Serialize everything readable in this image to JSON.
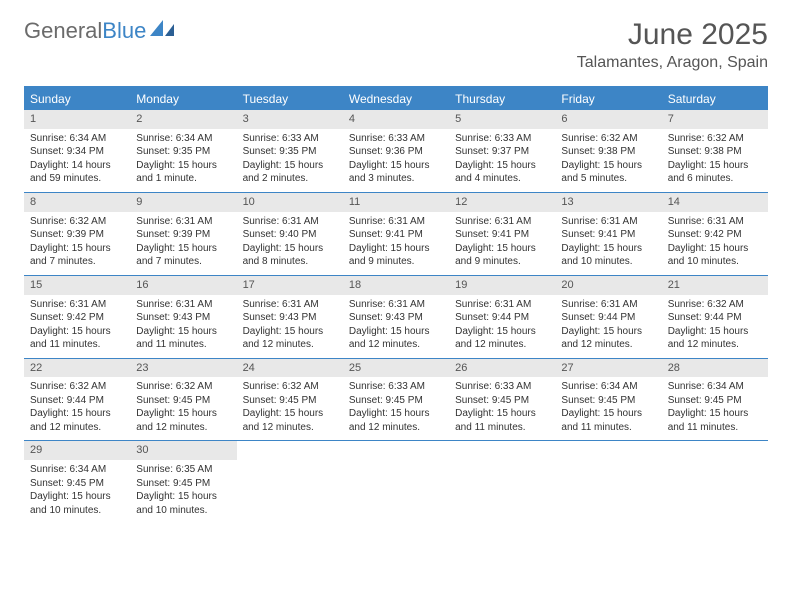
{
  "logo": {
    "text1": "General",
    "text2": "Blue"
  },
  "title": "June 2025",
  "location": "Talamantes, Aragon, Spain",
  "colors": {
    "accent": "#3d85c6",
    "header_text": "#ffffff",
    "daynum_bg": "#e8e8e8",
    "body_text": "#333333",
    "title_text": "#555555"
  },
  "day_names": [
    "Sunday",
    "Monday",
    "Tuesday",
    "Wednesday",
    "Thursday",
    "Friday",
    "Saturday"
  ],
  "weeks": [
    [
      {
        "n": "1",
        "sr": "Sunrise: 6:34 AM",
        "ss": "Sunset: 9:34 PM",
        "dl": "Daylight: 14 hours and 59 minutes."
      },
      {
        "n": "2",
        "sr": "Sunrise: 6:34 AM",
        "ss": "Sunset: 9:35 PM",
        "dl": "Daylight: 15 hours and 1 minute."
      },
      {
        "n": "3",
        "sr": "Sunrise: 6:33 AM",
        "ss": "Sunset: 9:35 PM",
        "dl": "Daylight: 15 hours and 2 minutes."
      },
      {
        "n": "4",
        "sr": "Sunrise: 6:33 AM",
        "ss": "Sunset: 9:36 PM",
        "dl": "Daylight: 15 hours and 3 minutes."
      },
      {
        "n": "5",
        "sr": "Sunrise: 6:33 AM",
        "ss": "Sunset: 9:37 PM",
        "dl": "Daylight: 15 hours and 4 minutes."
      },
      {
        "n": "6",
        "sr": "Sunrise: 6:32 AM",
        "ss": "Sunset: 9:38 PM",
        "dl": "Daylight: 15 hours and 5 minutes."
      },
      {
        "n": "7",
        "sr": "Sunrise: 6:32 AM",
        "ss": "Sunset: 9:38 PM",
        "dl": "Daylight: 15 hours and 6 minutes."
      }
    ],
    [
      {
        "n": "8",
        "sr": "Sunrise: 6:32 AM",
        "ss": "Sunset: 9:39 PM",
        "dl": "Daylight: 15 hours and 7 minutes."
      },
      {
        "n": "9",
        "sr": "Sunrise: 6:31 AM",
        "ss": "Sunset: 9:39 PM",
        "dl": "Daylight: 15 hours and 7 minutes."
      },
      {
        "n": "10",
        "sr": "Sunrise: 6:31 AM",
        "ss": "Sunset: 9:40 PM",
        "dl": "Daylight: 15 hours and 8 minutes."
      },
      {
        "n": "11",
        "sr": "Sunrise: 6:31 AM",
        "ss": "Sunset: 9:41 PM",
        "dl": "Daylight: 15 hours and 9 minutes."
      },
      {
        "n": "12",
        "sr": "Sunrise: 6:31 AM",
        "ss": "Sunset: 9:41 PM",
        "dl": "Daylight: 15 hours and 9 minutes."
      },
      {
        "n": "13",
        "sr": "Sunrise: 6:31 AM",
        "ss": "Sunset: 9:41 PM",
        "dl": "Daylight: 15 hours and 10 minutes."
      },
      {
        "n": "14",
        "sr": "Sunrise: 6:31 AM",
        "ss": "Sunset: 9:42 PM",
        "dl": "Daylight: 15 hours and 10 minutes."
      }
    ],
    [
      {
        "n": "15",
        "sr": "Sunrise: 6:31 AM",
        "ss": "Sunset: 9:42 PM",
        "dl": "Daylight: 15 hours and 11 minutes."
      },
      {
        "n": "16",
        "sr": "Sunrise: 6:31 AM",
        "ss": "Sunset: 9:43 PM",
        "dl": "Daylight: 15 hours and 11 minutes."
      },
      {
        "n": "17",
        "sr": "Sunrise: 6:31 AM",
        "ss": "Sunset: 9:43 PM",
        "dl": "Daylight: 15 hours and 12 minutes."
      },
      {
        "n": "18",
        "sr": "Sunrise: 6:31 AM",
        "ss": "Sunset: 9:43 PM",
        "dl": "Daylight: 15 hours and 12 minutes."
      },
      {
        "n": "19",
        "sr": "Sunrise: 6:31 AM",
        "ss": "Sunset: 9:44 PM",
        "dl": "Daylight: 15 hours and 12 minutes."
      },
      {
        "n": "20",
        "sr": "Sunrise: 6:31 AM",
        "ss": "Sunset: 9:44 PM",
        "dl": "Daylight: 15 hours and 12 minutes."
      },
      {
        "n": "21",
        "sr": "Sunrise: 6:32 AM",
        "ss": "Sunset: 9:44 PM",
        "dl": "Daylight: 15 hours and 12 minutes."
      }
    ],
    [
      {
        "n": "22",
        "sr": "Sunrise: 6:32 AM",
        "ss": "Sunset: 9:44 PM",
        "dl": "Daylight: 15 hours and 12 minutes."
      },
      {
        "n": "23",
        "sr": "Sunrise: 6:32 AM",
        "ss": "Sunset: 9:45 PM",
        "dl": "Daylight: 15 hours and 12 minutes."
      },
      {
        "n": "24",
        "sr": "Sunrise: 6:32 AM",
        "ss": "Sunset: 9:45 PM",
        "dl": "Daylight: 15 hours and 12 minutes."
      },
      {
        "n": "25",
        "sr": "Sunrise: 6:33 AM",
        "ss": "Sunset: 9:45 PM",
        "dl": "Daylight: 15 hours and 12 minutes."
      },
      {
        "n": "26",
        "sr": "Sunrise: 6:33 AM",
        "ss": "Sunset: 9:45 PM",
        "dl": "Daylight: 15 hours and 11 minutes."
      },
      {
        "n": "27",
        "sr": "Sunrise: 6:34 AM",
        "ss": "Sunset: 9:45 PM",
        "dl": "Daylight: 15 hours and 11 minutes."
      },
      {
        "n": "28",
        "sr": "Sunrise: 6:34 AM",
        "ss": "Sunset: 9:45 PM",
        "dl": "Daylight: 15 hours and 11 minutes."
      }
    ],
    [
      {
        "n": "29",
        "sr": "Sunrise: 6:34 AM",
        "ss": "Sunset: 9:45 PM",
        "dl": "Daylight: 15 hours and 10 minutes."
      },
      {
        "n": "30",
        "sr": "Sunrise: 6:35 AM",
        "ss": "Sunset: 9:45 PM",
        "dl": "Daylight: 15 hours and 10 minutes."
      },
      null,
      null,
      null,
      null,
      null
    ]
  ]
}
